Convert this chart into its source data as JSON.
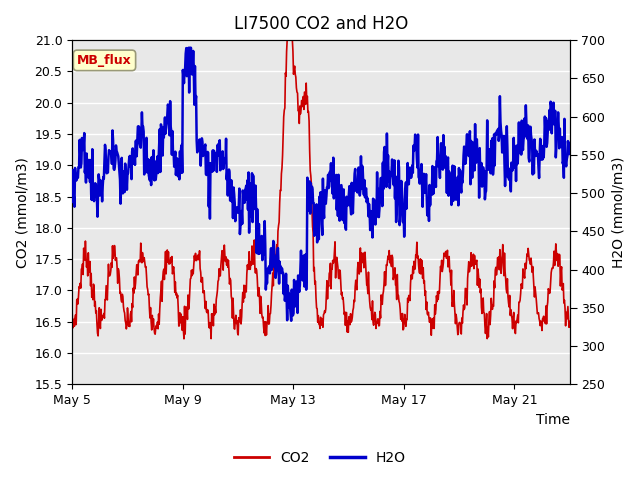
{
  "title": "LI7500 CO2 and H2O",
  "xlabel": "Time",
  "ylabel_left": "CO2 (mmol/m3)",
  "ylabel_right": "H2O (mmol/m3)",
  "ylim_left": [
    15.5,
    21.0
  ],
  "ylim_right": [
    250,
    700
  ],
  "yticks_left": [
    15.5,
    16.0,
    16.5,
    17.0,
    17.5,
    18.0,
    18.5,
    19.0,
    19.5,
    20.0,
    20.5,
    21.0
  ],
  "yticks_right": [
    250,
    300,
    350,
    400,
    450,
    500,
    550,
    600,
    650,
    700
  ],
  "xtick_positions": [
    0,
    4,
    8,
    12,
    16
  ],
  "xtick_labels": [
    "May 5",
    "May 9",
    "May 13",
    "May 17",
    "May 21"
  ],
  "co2_color": "#cc0000",
  "h2o_color": "#0000cc",
  "fig_bg_color": "#ffffff",
  "plot_bg_color": "#e8e8e8",
  "grid_color": "#ffffff",
  "mb_flux_label": "MB_flux",
  "mb_flux_bg": "#ffffcc",
  "mb_flux_border": "#999977",
  "mb_flux_text_color": "#cc0000",
  "legend_co2": "CO2",
  "legend_h2o": "H2O",
  "title_fontsize": 12,
  "axis_label_fontsize": 10,
  "tick_fontsize": 9,
  "n_days": 18,
  "xlim": [
    0,
    18
  ]
}
